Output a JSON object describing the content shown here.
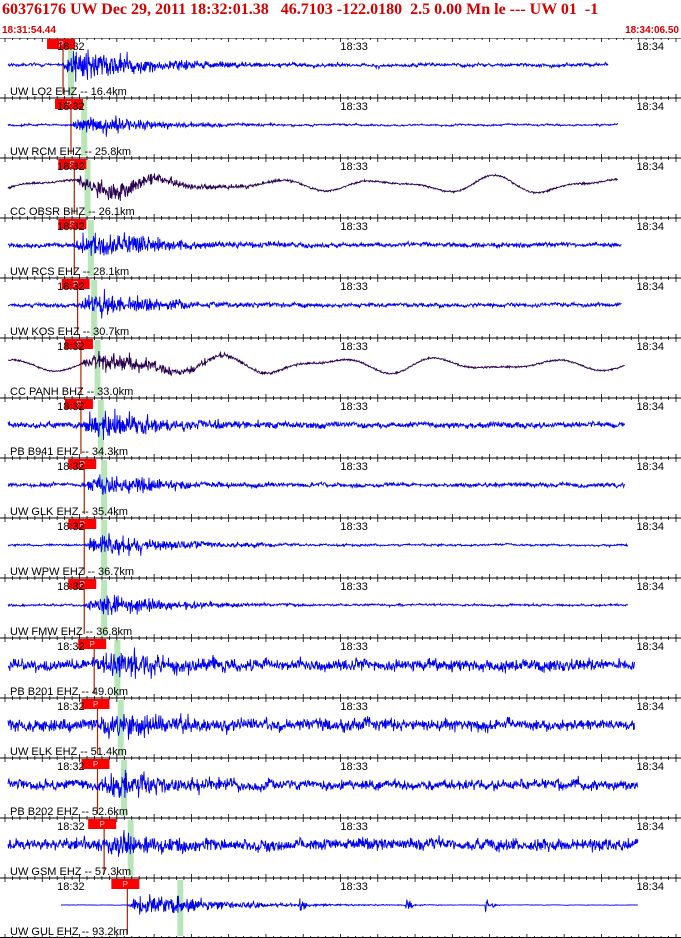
{
  "header": {
    "title": "60376176 UW Dec 29, 2011 18:32:01.38   46.7103 -122.0180  2.5 0.00 Mn le --- UW 01  -1",
    "start_time": "18:31:54.44",
    "end_time": "18:34:06.50"
  },
  "colors": {
    "header_text": "#d40000",
    "trace_blue": "#0000ee",
    "trace_dark": "#2a0050",
    "pick_marker": "#ff0000",
    "arrival_band": "#a8e0a8"
  },
  "time_labels": [
    "18:32",
    "18:33",
    "18:34"
  ],
  "pick_label": "P",
  "traces": [
    {
      "label": "UW LO2 EHZ -- 16.4km",
      "style": "blue",
      "amp": 0.2,
      "ev": 3.5,
      "pick": 0.083,
      "band": 0.095,
      "noise": 0.6,
      "span": 0.905
    },
    {
      "label": "UW RCM EHZ -- 25.8km",
      "style": "blue",
      "amp": 0.15,
      "ev": 2.8,
      "pick": 0.095,
      "band": 0.115,
      "noise": 0.4,
      "span": 0.92
    },
    {
      "label": "CC OBSR BHZ -- 26.1km",
      "style": "dark",
      "amp": 0.35,
      "ev": 1.4,
      "pick": 0.1,
      "band": 0.12,
      "noise": 0.3,
      "span": 0.92
    },
    {
      "label": "UW RCS EHZ -- 28.1km",
      "style": "blue",
      "amp": 0.2,
      "ev": 3.2,
      "pick": 0.1,
      "band": 0.125,
      "noise": 0.9,
      "span": 0.925
    },
    {
      "label": "UW KOS EHZ -- 30.7km",
      "style": "blue",
      "amp": 0.2,
      "ev": 2.4,
      "pick": 0.105,
      "band": 0.13,
      "noise": 0.8,
      "span": 0.925
    },
    {
      "label": "CC PANH BHZ -- 33.0km",
      "style": "dark",
      "amp": 0.35,
      "ev": 1.4,
      "pick": 0.11,
      "band": 0.135,
      "noise": 0.3,
      "span": 0.93
    },
    {
      "label": "PB B941 EHZ -- 34.3km",
      "style": "blue",
      "amp": 0.25,
      "ev": 2.6,
      "pick": 0.11,
      "band": 0.14,
      "noise": 0.9,
      "span": 0.93
    },
    {
      "label": "UW GLK EHZ -- 35.4km",
      "style": "blue",
      "amp": 0.2,
      "ev": 2.2,
      "pick": 0.115,
      "band": 0.145,
      "noise": 0.8,
      "span": 0.93
    },
    {
      "label": "UW WPW EHZ -- 36.7km",
      "style": "blue",
      "amp": 0.15,
      "ev": 3.0,
      "pick": 0.115,
      "band": 0.145,
      "noise": 0.5,
      "span": 0.935
    },
    {
      "label": "UW FMW EHZ -- 36.8km",
      "style": "blue",
      "amp": 0.15,
      "ev": 3.0,
      "pick": 0.115,
      "band": 0.145,
      "noise": 0.5,
      "span": 0.935
    },
    {
      "label": "PB B201 EHZ -- 49.0km",
      "style": "blue",
      "amp": 0.4,
      "ev": 1.4,
      "pick": 0.13,
      "band": 0.165,
      "noise": 1.2,
      "span": 0.945
    },
    {
      "label": "UW ELK EHZ -- 51.4km",
      "style": "blue",
      "amp": 0.4,
      "ev": 1.4,
      "pick": 0.135,
      "band": 0.17,
      "noise": 1.2,
      "span": 0.945
    },
    {
      "label": "PB B202 EHZ -- 52.6km",
      "style": "blue",
      "amp": 0.4,
      "ev": 1.3,
      "pick": 0.135,
      "band": 0.175,
      "noise": 1.0,
      "span": 0.95
    },
    {
      "label": "UW GSM EHZ -- 57.3km",
      "style": "blue",
      "amp": 0.45,
      "ev": 1.2,
      "pick": 0.145,
      "band": 0.185,
      "noise": 1.1,
      "span": 0.95
    },
    {
      "label": "UW GUL EHZ -- 93.2km",
      "style": "blue",
      "amp": 0.04,
      "ev": 12,
      "pick": 0.18,
      "band": 0.26,
      "noise": 0.2,
      "span": 0.95
    }
  ]
}
